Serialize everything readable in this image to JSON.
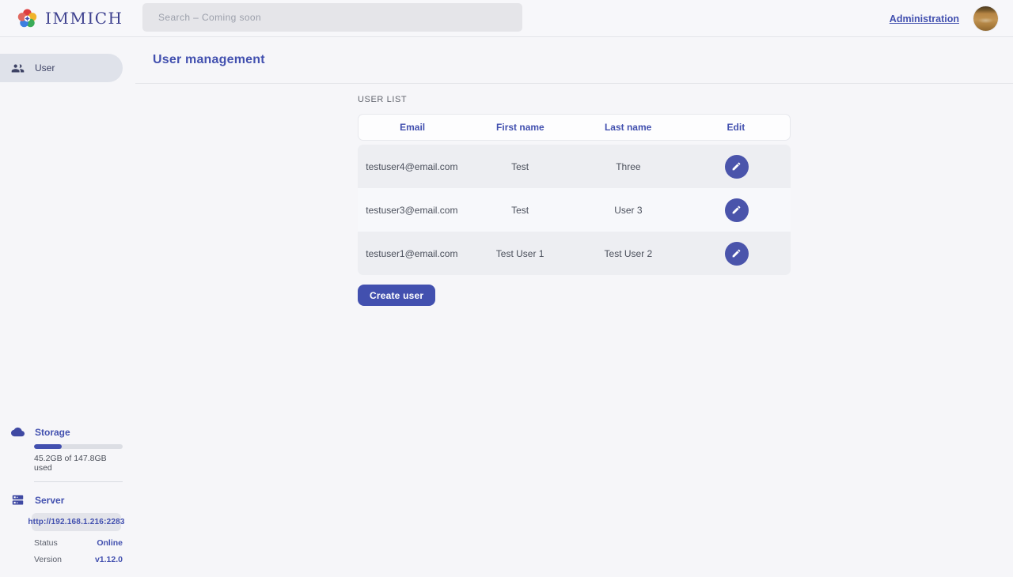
{
  "header": {
    "brand": "IMMICH",
    "search_placeholder": "Search – Coming soon",
    "admin_link": "Administration"
  },
  "sidebar": {
    "items": [
      {
        "label": "User",
        "icon": "users-icon",
        "active": true
      }
    ],
    "storage": {
      "title": "Storage",
      "icon": "cloud-icon",
      "usage_text": "45.2GB of 147.8GB used",
      "percent_used": 31
    },
    "server": {
      "title": "Server",
      "icon": "server-icon",
      "url": "http://192.168.1.216:2283",
      "status_label": "Status",
      "status_value": "Online",
      "version_label": "Version",
      "version_value": "v1.12.0"
    }
  },
  "main": {
    "title": "User management",
    "section_label": "USER LIST",
    "table": {
      "columns": [
        "Email",
        "First name",
        "Last name",
        "Edit"
      ],
      "rows": [
        {
          "email": "testuser4@email.com",
          "first_name": "Test",
          "last_name": "Three"
        },
        {
          "email": "testuser3@email.com",
          "first_name": "Test",
          "last_name": "User 3"
        },
        {
          "email": "testuser1@email.com",
          "first_name": "Test User 1",
          "last_name": "Test User 2"
        }
      ],
      "edit_icon": "pencil-icon"
    },
    "create_button": "Create user"
  },
  "colors": {
    "primary": "#4250af",
    "row_alt": "#edeef2",
    "online_status": "#4250af"
  }
}
